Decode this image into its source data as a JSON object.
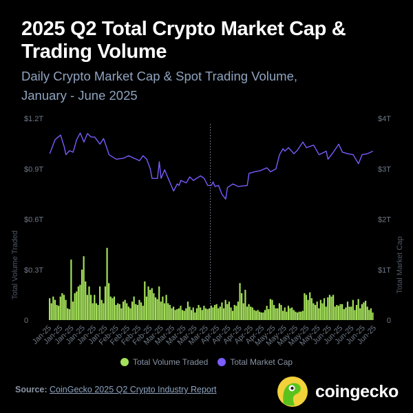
{
  "header": {
    "title": "2025 Q2 Total Crypto Market Cap & Trading Volume",
    "subtitle_line1": "Daily Crypto Market Cap & Spot Trading Volume,",
    "subtitle_line2": "January - June 2025"
  },
  "chart_data": {
    "type": "bar+line",
    "title": "2025 Q2 Total Crypto Market Cap & Trading Volume",
    "ylabel_left": "Total Volume Traded",
    "ylabel_right": "Total Market Cap",
    "left_ticks": [
      "0",
      "$0.3T",
      "$0.6T",
      "$0.9T",
      "$1.2T"
    ],
    "right_ticks": [
      "0",
      "$1T",
      "$2T",
      "$3T",
      "$4T"
    ],
    "ylim_left_billions": [
      0,
      1200
    ],
    "ylim_right_trillions": [
      0,
      4
    ],
    "x_tick_labels": [
      "Jan-25",
      "Jan-25",
      "Jan-25",
      "Jan-25",
      "Jan-25",
      "Jan-25",
      "Feb-25",
      "Feb-25",
      "Feb-25",
      "Feb-25",
      "Mar-25",
      "Mar-25",
      "Mar-25",
      "Mar-25",
      "Mar-25",
      "Apr-25",
      "Apr-25",
      "Apr-25",
      "Apr-25",
      "Apr-25",
      "May-25",
      "May-25",
      "May-25",
      "May-25",
      "May-25",
      "Jun-25",
      "Jun-25",
      "Jun-25",
      "Jun-25",
      "Jun-25"
    ],
    "q2_start_day": 90,
    "total_days": 181,
    "grid": false,
    "legend_position": "bottom",
    "series": [
      {
        "name": "Total Volume Traded",
        "type": "bar",
        "color": "#a5e15a",
        "unit": "billions USD",
        "values": [
          130,
          100,
          140,
          120,
          90,
          85,
          140,
          160,
          150,
          120,
          70,
          65,
          360,
          110,
          160,
          170,
          200,
          210,
          300,
          380,
          230,
          150,
          200,
          150,
          100,
          150,
          100,
          90,
          200,
          120,
          100,
          200,
          430,
          220,
          140,
          130,
          140,
          90,
          100,
          95,
          70,
          110,
          120,
          100,
          80,
          70,
          110,
          140,
          95,
          90,
          120,
          105,
          85,
          230,
          140,
          200,
          180,
          190,
          160,
          135,
          125,
          200,
          110,
          140,
          100,
          150,
          100,
          90,
          70,
          80,
          60,
          65,
          70,
          85,
          60,
          55,
          70,
          110,
          80,
          60,
          75,
          45,
          70,
          90,
          75,
          60,
          85,
          70,
          65,
          70,
          85,
          75,
          90,
          95,
          70,
          80,
          105,
          70,
          120,
          95,
          110,
          75,
          55,
          90,
          85,
          110,
          220,
          160,
          100,
          180,
          80,
          95,
          80,
          75,
          60,
          55,
          60,
          50,
          45,
          45,
          60,
          85,
          65,
          125,
          120,
          90,
          70,
          70,
          100,
          90,
          55,
          75,
          50,
          85,
          70,
          75,
          60,
          50,
          45,
          50,
          50,
          55,
          160,
          150,
          120,
          165,
          130,
          100,
          90,
          110,
          70,
          120,
          100,
          130,
          80,
          135,
          150,
          140,
          150,
          80,
          90,
          85,
          95,
          95,
          65,
          75,
          110,
          80,
          80,
          120,
          60,
          90,
          125,
          70,
          95,
          105,
          115,
          80,
          60,
          70,
          45
        ]
      },
      {
        "name": "Total Market Cap",
        "type": "line",
        "color": "#7b5cff",
        "unit": "trillions USD",
        "points": [
          [
            0,
            3.3
          ],
          [
            3,
            3.58
          ],
          [
            6,
            3.67
          ],
          [
            8,
            3.44
          ],
          [
            9,
            3.28
          ],
          [
            11,
            3.36
          ],
          [
            13,
            3.33
          ],
          [
            15,
            3.58
          ],
          [
            17,
            3.71
          ],
          [
            19,
            3.53
          ],
          [
            21,
            3.7
          ],
          [
            23,
            3.63
          ],
          [
            25,
            3.63
          ],
          [
            28,
            3.49
          ],
          [
            30,
            3.6
          ],
          [
            33,
            3.28
          ],
          [
            37,
            3.19
          ],
          [
            41,
            3.21
          ],
          [
            44,
            3.26
          ],
          [
            50,
            3.16
          ],
          [
            52,
            3.26
          ],
          [
            54,
            3.19
          ],
          [
            56,
            3.0
          ],
          [
            57,
            2.81
          ],
          [
            60,
            2.81
          ],
          [
            61,
            3.14
          ],
          [
            62,
            2.81
          ],
          [
            64,
            2.98
          ],
          [
            66,
            2.81
          ],
          [
            69,
            2.56
          ],
          [
            71,
            2.7
          ],
          [
            72,
            2.67
          ],
          [
            73,
            2.77
          ],
          [
            76,
            2.72
          ],
          [
            78,
            2.84
          ],
          [
            80,
            2.77
          ],
          [
            84,
            2.86
          ],
          [
            86,
            2.81
          ],
          [
            88,
            2.67
          ],
          [
            90,
            2.67
          ],
          [
            91,
            2.74
          ],
          [
            92,
            2.65
          ],
          [
            94,
            2.67
          ],
          [
            96,
            2.49
          ],
          [
            98,
            2.4
          ],
          [
            99,
            2.63
          ],
          [
            102,
            2.7
          ],
          [
            105,
            2.65
          ],
          [
            110,
            2.67
          ],
          [
            111,
            2.91
          ],
          [
            115,
            2.95
          ],
          [
            117,
            2.96
          ],
          [
            121,
            3.02
          ],
          [
            123,
            2.94
          ],
          [
            126,
            3.0
          ],
          [
            128,
            3.28
          ],
          [
            130,
            3.4
          ],
          [
            131,
            3.35
          ],
          [
            133,
            3.42
          ],
          [
            136,
            3.3
          ],
          [
            138,
            3.37
          ],
          [
            141,
            3.53
          ],
          [
            143,
            3.42
          ],
          [
            147,
            3.47
          ],
          [
            150,
            3.28
          ],
          [
            154,
            3.35
          ],
          [
            155,
            3.19
          ],
          [
            158,
            3.33
          ],
          [
            161,
            3.49
          ],
          [
            163,
            3.33
          ],
          [
            166,
            3.3
          ],
          [
            169,
            3.28
          ],
          [
            172,
            3.1
          ],
          [
            174,
            3.28
          ],
          [
            177,
            3.3
          ],
          [
            180,
            3.35
          ]
        ]
      }
    ]
  },
  "legend": {
    "volume_label": "Total Volume Traded",
    "marketcap_label": "Total Market Cap"
  },
  "footer": {
    "source_prefix": "Source:",
    "source_link": "CoinGecko 2025 Q2 Crypto Industry Report",
    "brand": "coingecko"
  },
  "colors": {
    "background": "#000000",
    "volume": "#a5e15a",
    "marketcap": "#7b5cff",
    "subtitle": "#8fa4c0"
  }
}
